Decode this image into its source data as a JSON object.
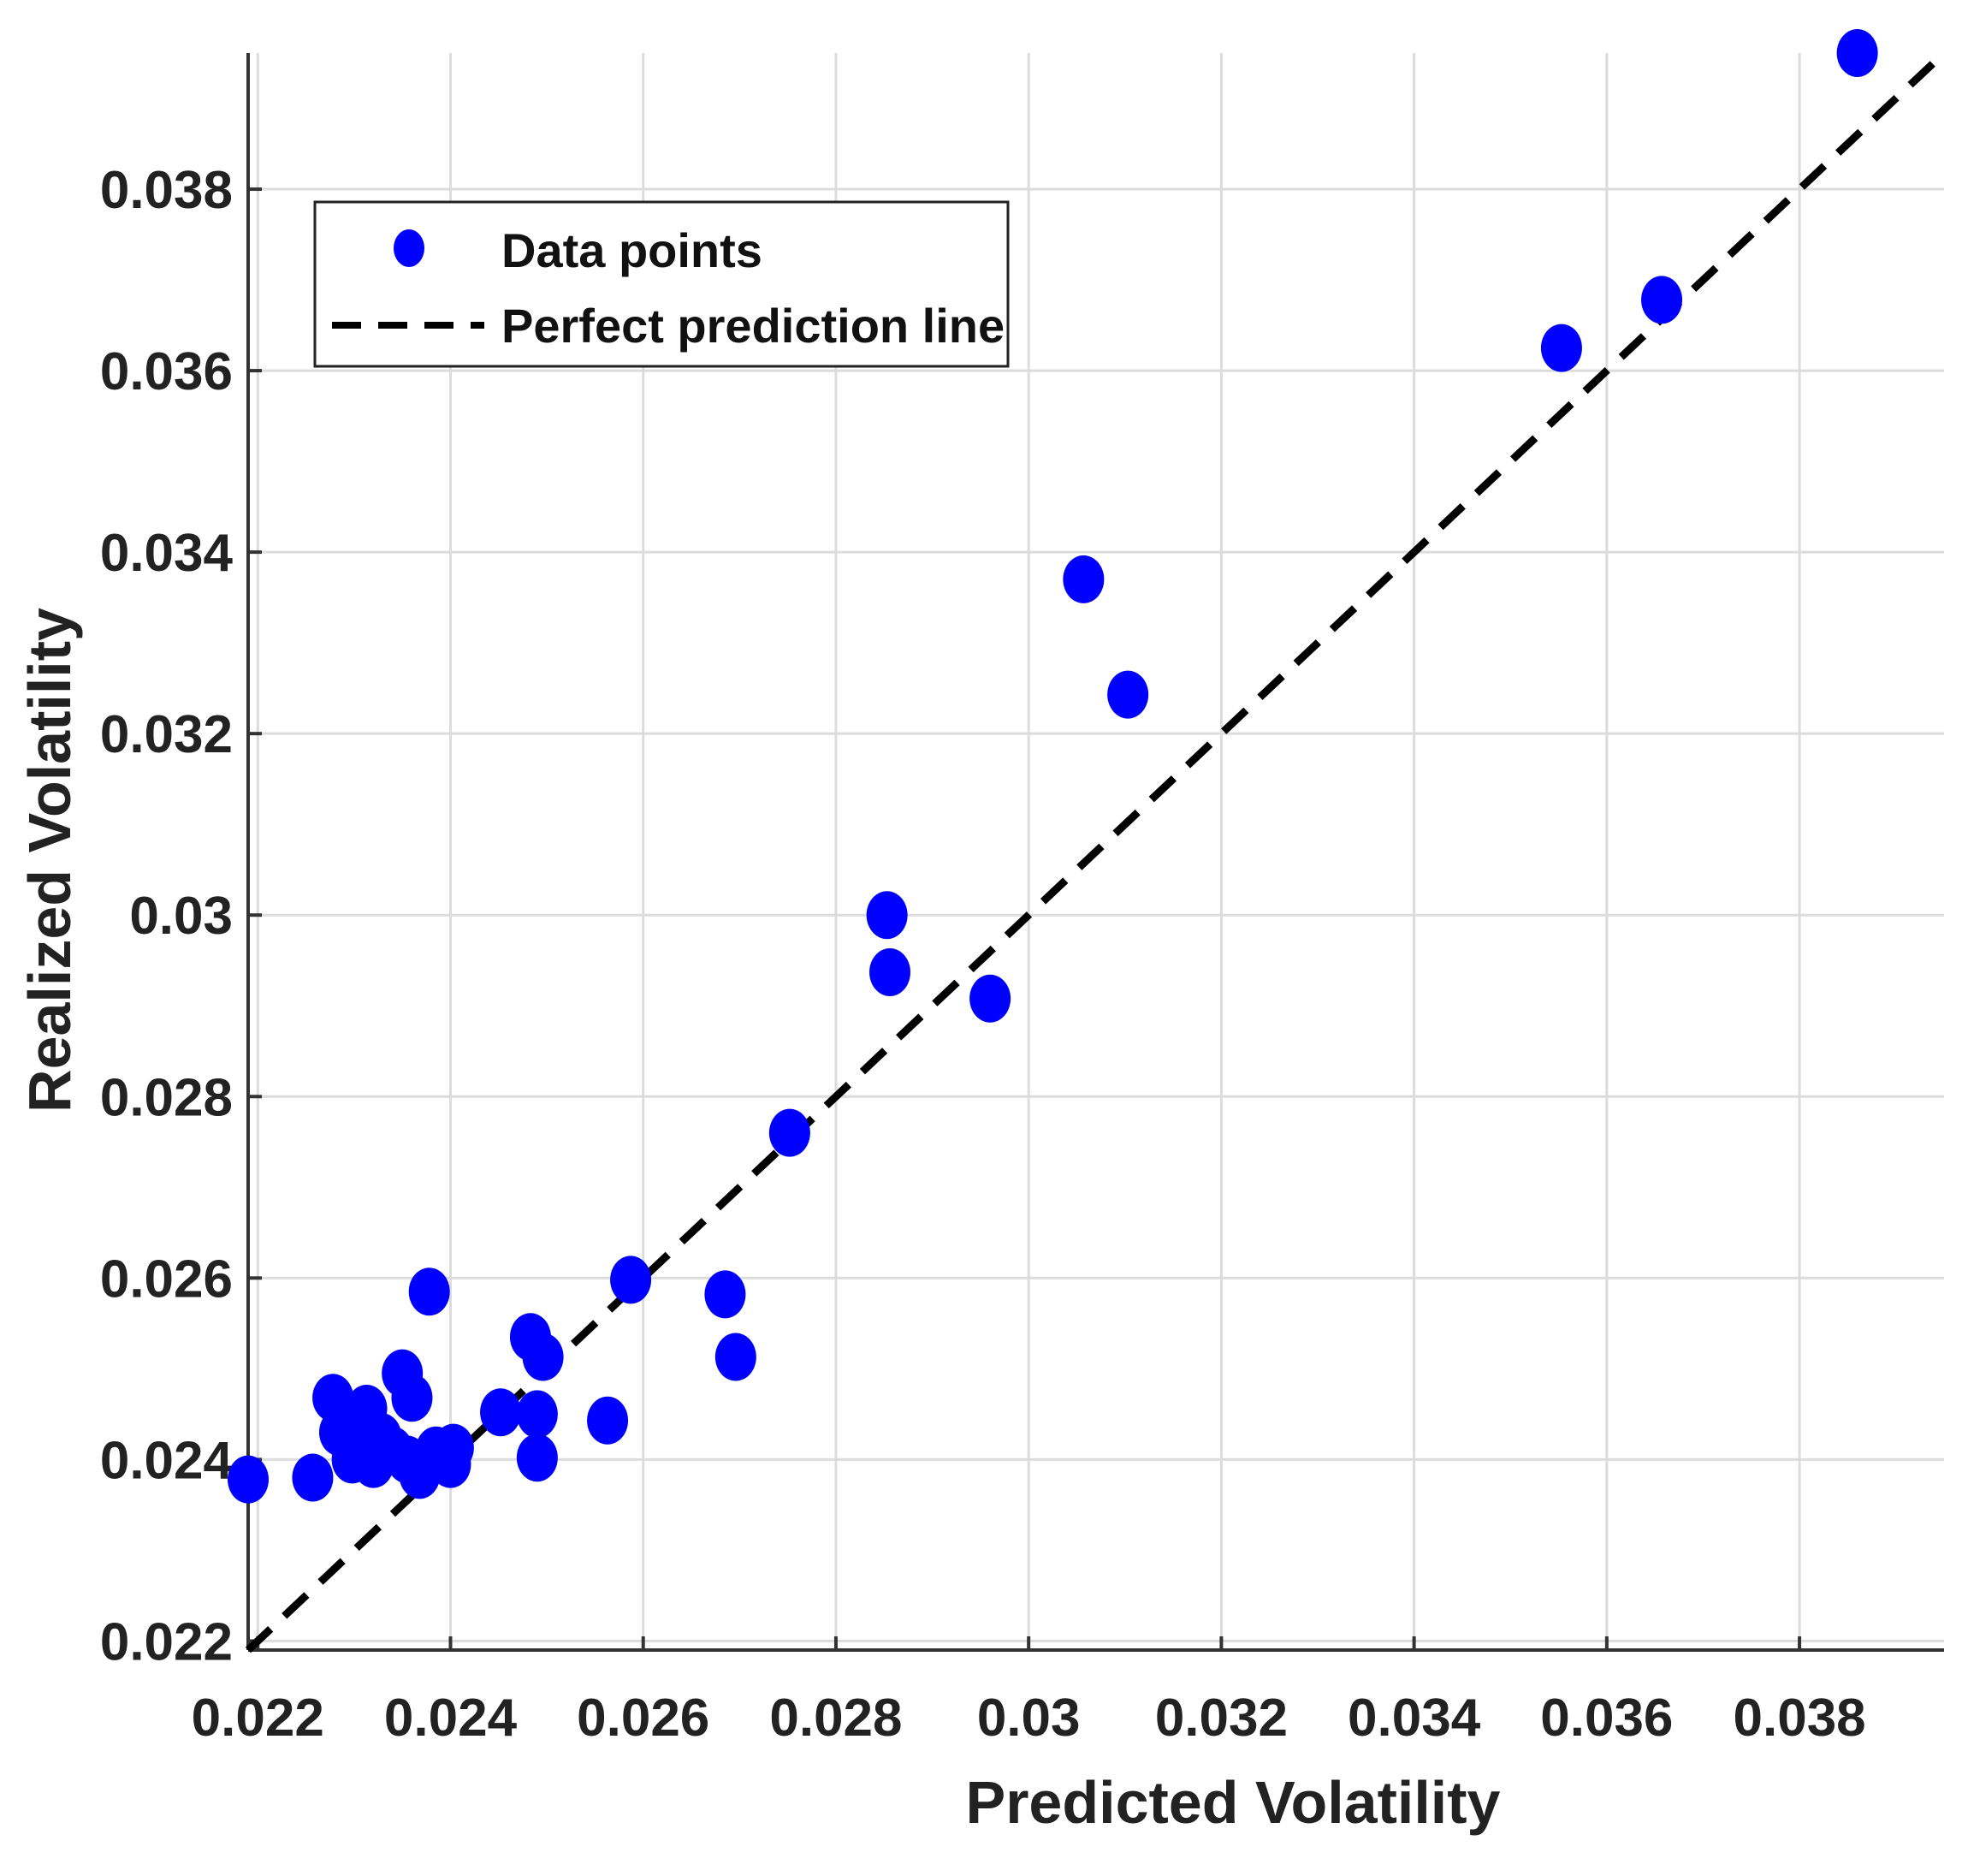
{
  "chart_data": {
    "type": "scatter",
    "xlabel": "Predicted Volatility",
    "ylabel": "Realized Volatility",
    "xlim": [
      0.0219,
      0.0395
    ],
    "ylim": [
      0.0219,
      0.0395
    ],
    "x_ticks": [
      0.022,
      0.024,
      0.026,
      0.028,
      0.03,
      0.032,
      0.034,
      0.036,
      0.038
    ],
    "x_tick_labels": [
      "0.022",
      "0.024",
      "0.026",
      "0.028",
      "0.03",
      "0.032",
      "0.034",
      "0.036",
      "0.038"
    ],
    "y_ticks": [
      0.022,
      0.024,
      0.026,
      0.028,
      0.03,
      0.032,
      0.034,
      0.036,
      0.038
    ],
    "y_tick_labels": [
      "0.022",
      "0.024",
      "0.026",
      "0.028",
      "0.03",
      "0.032",
      "0.034",
      "0.036",
      "0.038"
    ],
    "grid": true,
    "legend_position": "top-left",
    "series": [
      {
        "name": "Data points",
        "kind": "scatter",
        "color": "#0000ff",
        "points": [
          {
            "x": 0.0219,
            "y": 0.02378
          },
          {
            "x": 0.02257,
            "y": 0.0238
          },
          {
            "x": 0.02278,
            "y": 0.02468
          },
          {
            "x": 0.02285,
            "y": 0.0243
          },
          {
            "x": 0.02298,
            "y": 0.024
          },
          {
            "x": 0.02305,
            "y": 0.0244
          },
          {
            "x": 0.02313,
            "y": 0.02456
          },
          {
            "x": 0.0232,
            "y": 0.02395
          },
          {
            "x": 0.02328,
            "y": 0.02425
          },
          {
            "x": 0.0234,
            "y": 0.0241
          },
          {
            "x": 0.0235,
            "y": 0.02495
          },
          {
            "x": 0.0236,
            "y": 0.02468
          },
          {
            "x": 0.02355,
            "y": 0.024
          },
          {
            "x": 0.02368,
            "y": 0.02383
          },
          {
            "x": 0.02378,
            "y": 0.02585
          },
          {
            "x": 0.02385,
            "y": 0.0241
          },
          {
            "x": 0.024,
            "y": 0.02395
          },
          {
            "x": 0.02403,
            "y": 0.02413
          },
          {
            "x": 0.02452,
            "y": 0.02452
          },
          {
            "x": 0.02483,
            "y": 0.02535
          },
          {
            "x": 0.0249,
            "y": 0.0245
          },
          {
            "x": 0.0249,
            "y": 0.02402
          },
          {
            "x": 0.02496,
            "y": 0.02513
          },
          {
            "x": 0.02563,
            "y": 0.02443
          },
          {
            "x": 0.02587,
            "y": 0.02598
          },
          {
            "x": 0.02685,
            "y": 0.02582
          },
          {
            "x": 0.02696,
            "y": 0.02513
          },
          {
            "x": 0.02752,
            "y": 0.0276
          },
          {
            "x": 0.02853,
            "y": 0.03
          },
          {
            "x": 0.02856,
            "y": 0.02937
          },
          {
            "x": 0.0296,
            "y": 0.02908
          },
          {
            "x": 0.03057,
            "y": 0.0337
          },
          {
            "x": 0.03103,
            "y": 0.03243
          },
          {
            "x": 0.03553,
            "y": 0.03625
          },
          {
            "x": 0.03657,
            "y": 0.03678
          },
          {
            "x": 0.0386,
            "y": 0.0395
          }
        ]
      },
      {
        "name": "Perfect prediction line",
        "kind": "line",
        "color": "#000000",
        "dash": "dashed",
        "points": [
          {
            "x": 0.0219,
            "y": 0.0219
          },
          {
            "x": 0.0395,
            "y": 0.0395
          }
        ]
      }
    ]
  }
}
